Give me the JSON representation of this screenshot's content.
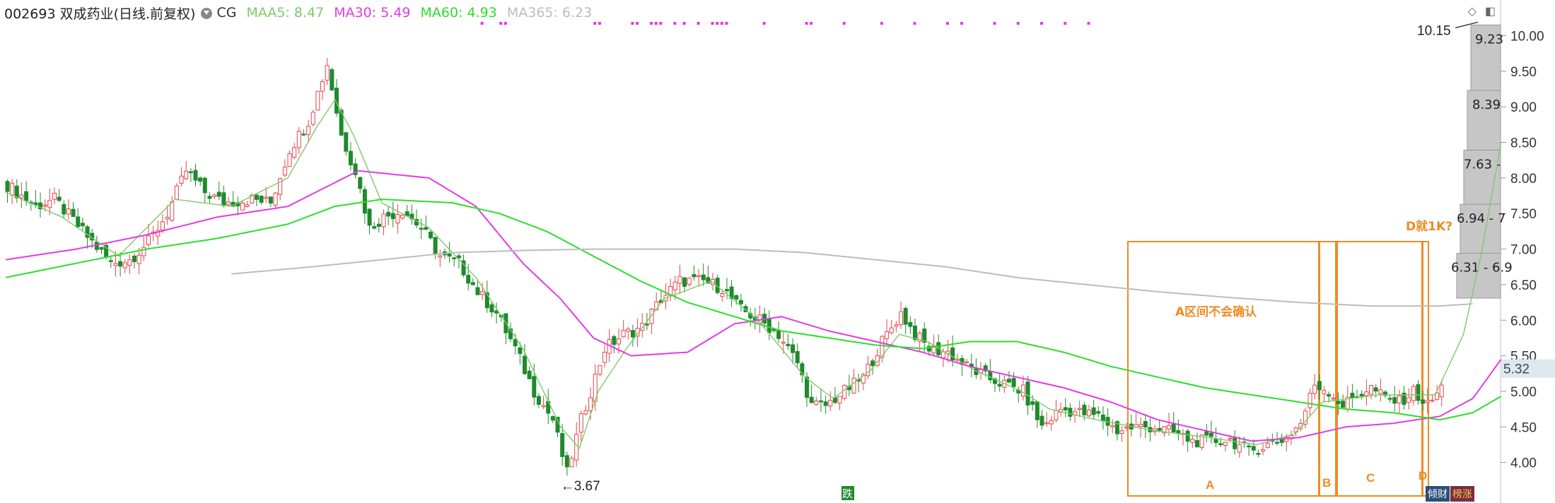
{
  "header": {
    "code": "002693 双成药业(日线.前复权)",
    "cg": "CG",
    "maa5": "MAA5: 8.47",
    "ma30": "MA30: 5.49",
    "ma60": "MA60: 4.93",
    "ma365": "MA365: 6.23"
  },
  "colors": {
    "up": "#e8434b",
    "down": "#1f8a2c",
    "ma5": "#7ccb6a",
    "ma30": "#e43ae4",
    "ma60": "#2adf2a",
    "ma365": "#bdbdbd",
    "annot": "#f08a23",
    "ladder": "#c6c6c6",
    "price_tag": "#dfe7ef"
  },
  "labels": {
    "low_marker": "←3.67",
    "high_marker": "10.15",
    "current_price": "5.32",
    "event_mark": "跌",
    "box_a_text": "A区间不会确认",
    "box_a": "A",
    "box_b": "B",
    "box_c": "C",
    "box_d": "D",
    "box_d_note": "D就1K?",
    "tab1": "倾财",
    "tab2": "榜涨"
  },
  "chart_data": {
    "type": "candlestick",
    "ylim": [
      3.5,
      10.3
    ],
    "y_ticks": [
      4.0,
      4.5,
      5.0,
      5.5,
      6.0,
      6.5,
      7.0,
      7.5,
      8.0,
      8.5,
      9.0,
      9.5,
      10.0
    ],
    "y_tick_labels": [
      "4.00",
      "4.50",
      "5.00",
      "5.50",
      "6.00",
      "6.50",
      "7.00",
      "7.50",
      "8.00",
      "8.50",
      "9.00",
      "9.50",
      "10.00"
    ],
    "grid": false,
    "series": [
      {
        "name": "MAA5",
        "value_label": "8.47"
      },
      {
        "name": "MA30",
        "value_label": "5.49"
      },
      {
        "name": "MA60",
        "value_label": "4.93"
      },
      {
        "name": "MA365",
        "value_label": "6.23"
      }
    ],
    "price_segments": [
      [
        0,
        7.9
      ],
      [
        6,
        7.6
      ],
      [
        10,
        7.7
      ],
      [
        14,
        7.4
      ],
      [
        18,
        7.1
      ],
      [
        22,
        6.8
      ],
      [
        26,
        6.85
      ],
      [
        30,
        7.1
      ],
      [
        34,
        7.5
      ],
      [
        38,
        8.1
      ],
      [
        42,
        7.8
      ],
      [
        46,
        7.65
      ],
      [
        52,
        7.7
      ],
      [
        56,
        7.65
      ],
      [
        60,
        8.4
      ],
      [
        64,
        8.8
      ],
      [
        68,
        9.6
      ],
      [
        71,
        8.6
      ],
      [
        74,
        8.1
      ],
      [
        77,
        7.3
      ],
      [
        80,
        7.45
      ],
      [
        84,
        7.55
      ],
      [
        88,
        7.3
      ],
      [
        92,
        6.9
      ],
      [
        96,
        6.8
      ],
      [
        100,
        6.4
      ],
      [
        104,
        6.1
      ],
      [
        108,
        5.6
      ],
      [
        112,
        5.0
      ],
      [
        116,
        4.6
      ],
      [
        119,
        3.85
      ],
      [
        122,
        4.6
      ],
      [
        127,
        5.6
      ],
      [
        131,
        5.8
      ],
      [
        135,
        5.9
      ],
      [
        139,
        6.3
      ],
      [
        143,
        6.55
      ],
      [
        148,
        6.55
      ],
      [
        152,
        6.45
      ],
      [
        156,
        6.15
      ],
      [
        160,
        6.0
      ],
      [
        164,
        5.8
      ],
      [
        168,
        5.4
      ],
      [
        171,
        4.8
      ],
      [
        174,
        4.8
      ],
      [
        178,
        5.0
      ],
      [
        182,
        5.2
      ],
      [
        186,
        5.7
      ],
      [
        190,
        6.1
      ],
      [
        193,
        5.8
      ],
      [
        196,
        5.6
      ],
      [
        200,
        5.55
      ],
      [
        204,
        5.35
      ],
      [
        208,
        5.2
      ],
      [
        212,
        5.1
      ],
      [
        216,
        5.0
      ],
      [
        220,
        4.5
      ],
      [
        224,
        4.75
      ],
      [
        228,
        4.7
      ],
      [
        232,
        4.65
      ],
      [
        236,
        4.45
      ],
      [
        240,
        4.5
      ],
      [
        244,
        4.5
      ],
      [
        248,
        4.42
      ],
      [
        252,
        4.3
      ],
      [
        256,
        4.3
      ],
      [
        260,
        4.32
      ],
      [
        264,
        4.15
      ],
      [
        268,
        4.25
      ],
      [
        272,
        4.35
      ],
      [
        275,
        4.55
      ],
      [
        278,
        5.1
      ],
      [
        281,
        5.0
      ],
      [
        284,
        4.8
      ],
      [
        287,
        4.95
      ],
      [
        290,
        5.05
      ],
      [
        293,
        4.9
      ],
      [
        296,
        4.85
      ],
      [
        299,
        5.0
      ],
      [
        302,
        4.8
      ],
      [
        305,
        5.05
      ]
    ],
    "ma_anchors": {
      "MAA5": [
        [
          0,
          7.8
        ],
        [
          12,
          7.45
        ],
        [
          24,
          6.9
        ],
        [
          36,
          7.7
        ],
        [
          48,
          7.6
        ],
        [
          60,
          8.0
        ],
        [
          66,
          8.7
        ],
        [
          70,
          9.1
        ],
        [
          74,
          8.6
        ],
        [
          80,
          7.65
        ],
        [
          90,
          7.3
        ],
        [
          100,
          6.6
        ],
        [
          110,
          5.6
        ],
        [
          118,
          4.5
        ],
        [
          122,
          4.2
        ],
        [
          126,
          5.0
        ],
        [
          132,
          5.6
        ],
        [
          140,
          6.3
        ],
        [
          150,
          6.55
        ],
        [
          160,
          6.0
        ],
        [
          170,
          5.2
        ],
        [
          176,
          4.9
        ],
        [
          184,
          5.3
        ],
        [
          190,
          5.8
        ],
        [
          196,
          5.7
        ],
        [
          206,
          5.3
        ],
        [
          216,
          5.0
        ],
        [
          222,
          4.75
        ],
        [
          232,
          4.6
        ],
        [
          244,
          4.45
        ],
        [
          256,
          4.35
        ],
        [
          266,
          4.25
        ],
        [
          274,
          4.4
        ],
        [
          280,
          4.85
        ],
        [
          292,
          4.95
        ],
        [
          304,
          4.95
        ],
        [
          310,
          5.8
        ],
        [
          314,
          7.0
        ],
        [
          318,
          8.5
        ]
      ],
      "MA30": [
        [
          0,
          6.85
        ],
        [
          15,
          7.0
        ],
        [
          30,
          7.2
        ],
        [
          45,
          7.45
        ],
        [
          60,
          7.6
        ],
        [
          75,
          8.1
        ],
        [
          90,
          8.0
        ],
        [
          100,
          7.6
        ],
        [
          110,
          6.8
        ],
        [
          118,
          6.3
        ],
        [
          125,
          5.75
        ],
        [
          133,
          5.5
        ],
        [
          145,
          5.55
        ],
        [
          155,
          5.95
        ],
        [
          165,
          6.05
        ],
        [
          175,
          5.85
        ],
        [
          185,
          5.7
        ],
        [
          195,
          5.55
        ],
        [
          205,
          5.35
        ],
        [
          215,
          5.2
        ],
        [
          225,
          5.05
        ],
        [
          235,
          4.85
        ],
        [
          245,
          4.6
        ],
        [
          255,
          4.45
        ],
        [
          265,
          4.3
        ],
        [
          275,
          4.35
        ],
        [
          285,
          4.5
        ],
        [
          295,
          4.55
        ],
        [
          305,
          4.65
        ],
        [
          312,
          4.9
        ],
        [
          318,
          5.45
        ]
      ],
      "MA60": [
        [
          0,
          6.6
        ],
        [
          15,
          6.8
        ],
        [
          30,
          7.0
        ],
        [
          45,
          7.15
        ],
        [
          60,
          7.35
        ],
        [
          70,
          7.6
        ],
        [
          80,
          7.7
        ],
        [
          95,
          7.65
        ],
        [
          105,
          7.5
        ],
        [
          115,
          7.25
        ],
        [
          125,
          6.9
        ],
        [
          135,
          6.55
        ],
        [
          145,
          6.25
        ],
        [
          155,
          6.05
        ],
        [
          165,
          5.85
        ],
        [
          175,
          5.75
        ],
        [
          185,
          5.65
        ],
        [
          195,
          5.6
        ],
        [
          205,
          5.7
        ],
        [
          215,
          5.7
        ],
        [
          225,
          5.55
        ],
        [
          235,
          5.35
        ],
        [
          245,
          5.2
        ],
        [
          255,
          5.05
        ],
        [
          265,
          4.95
        ],
        [
          275,
          4.85
        ],
        [
          285,
          4.75
        ],
        [
          295,
          4.7
        ],
        [
          305,
          4.6
        ],
        [
          312,
          4.7
        ],
        [
          318,
          4.93
        ]
      ],
      "MA365": [
        [
          48,
          6.65
        ],
        [
          65,
          6.75
        ],
        [
          80,
          6.85
        ],
        [
          95,
          6.95
        ],
        [
          110,
          6.98
        ],
        [
          125,
          7.0
        ],
        [
          140,
          7.0
        ],
        [
          155,
          7.0
        ],
        [
          170,
          6.95
        ],
        [
          185,
          6.85
        ],
        [
          200,
          6.75
        ],
        [
          215,
          6.6
        ],
        [
          230,
          6.5
        ],
        [
          245,
          6.4
        ],
        [
          260,
          6.32
        ],
        [
          275,
          6.25
        ],
        [
          290,
          6.2
        ],
        [
          305,
          6.2
        ],
        [
          312,
          6.23
        ]
      ]
    },
    "markers": [
      {
        "label": "←3.67",
        "value": 3.67
      },
      {
        "label": "10.15",
        "value": 10.15
      },
      {
        "label": "5.32",
        "value": 5.32
      }
    ],
    "chip_ladder": [
      {
        "label": "9.23",
        "value": 9.23
      },
      {
        "label": "8.39",
        "value": 8.39
      },
      {
        "label": "7.63 -",
        "value": 7.63
      },
      {
        "label": "6.94 - 7",
        "value": 6.94
      },
      {
        "label": "6.31 - 6.9",
        "value": 6.31
      }
    ]
  }
}
